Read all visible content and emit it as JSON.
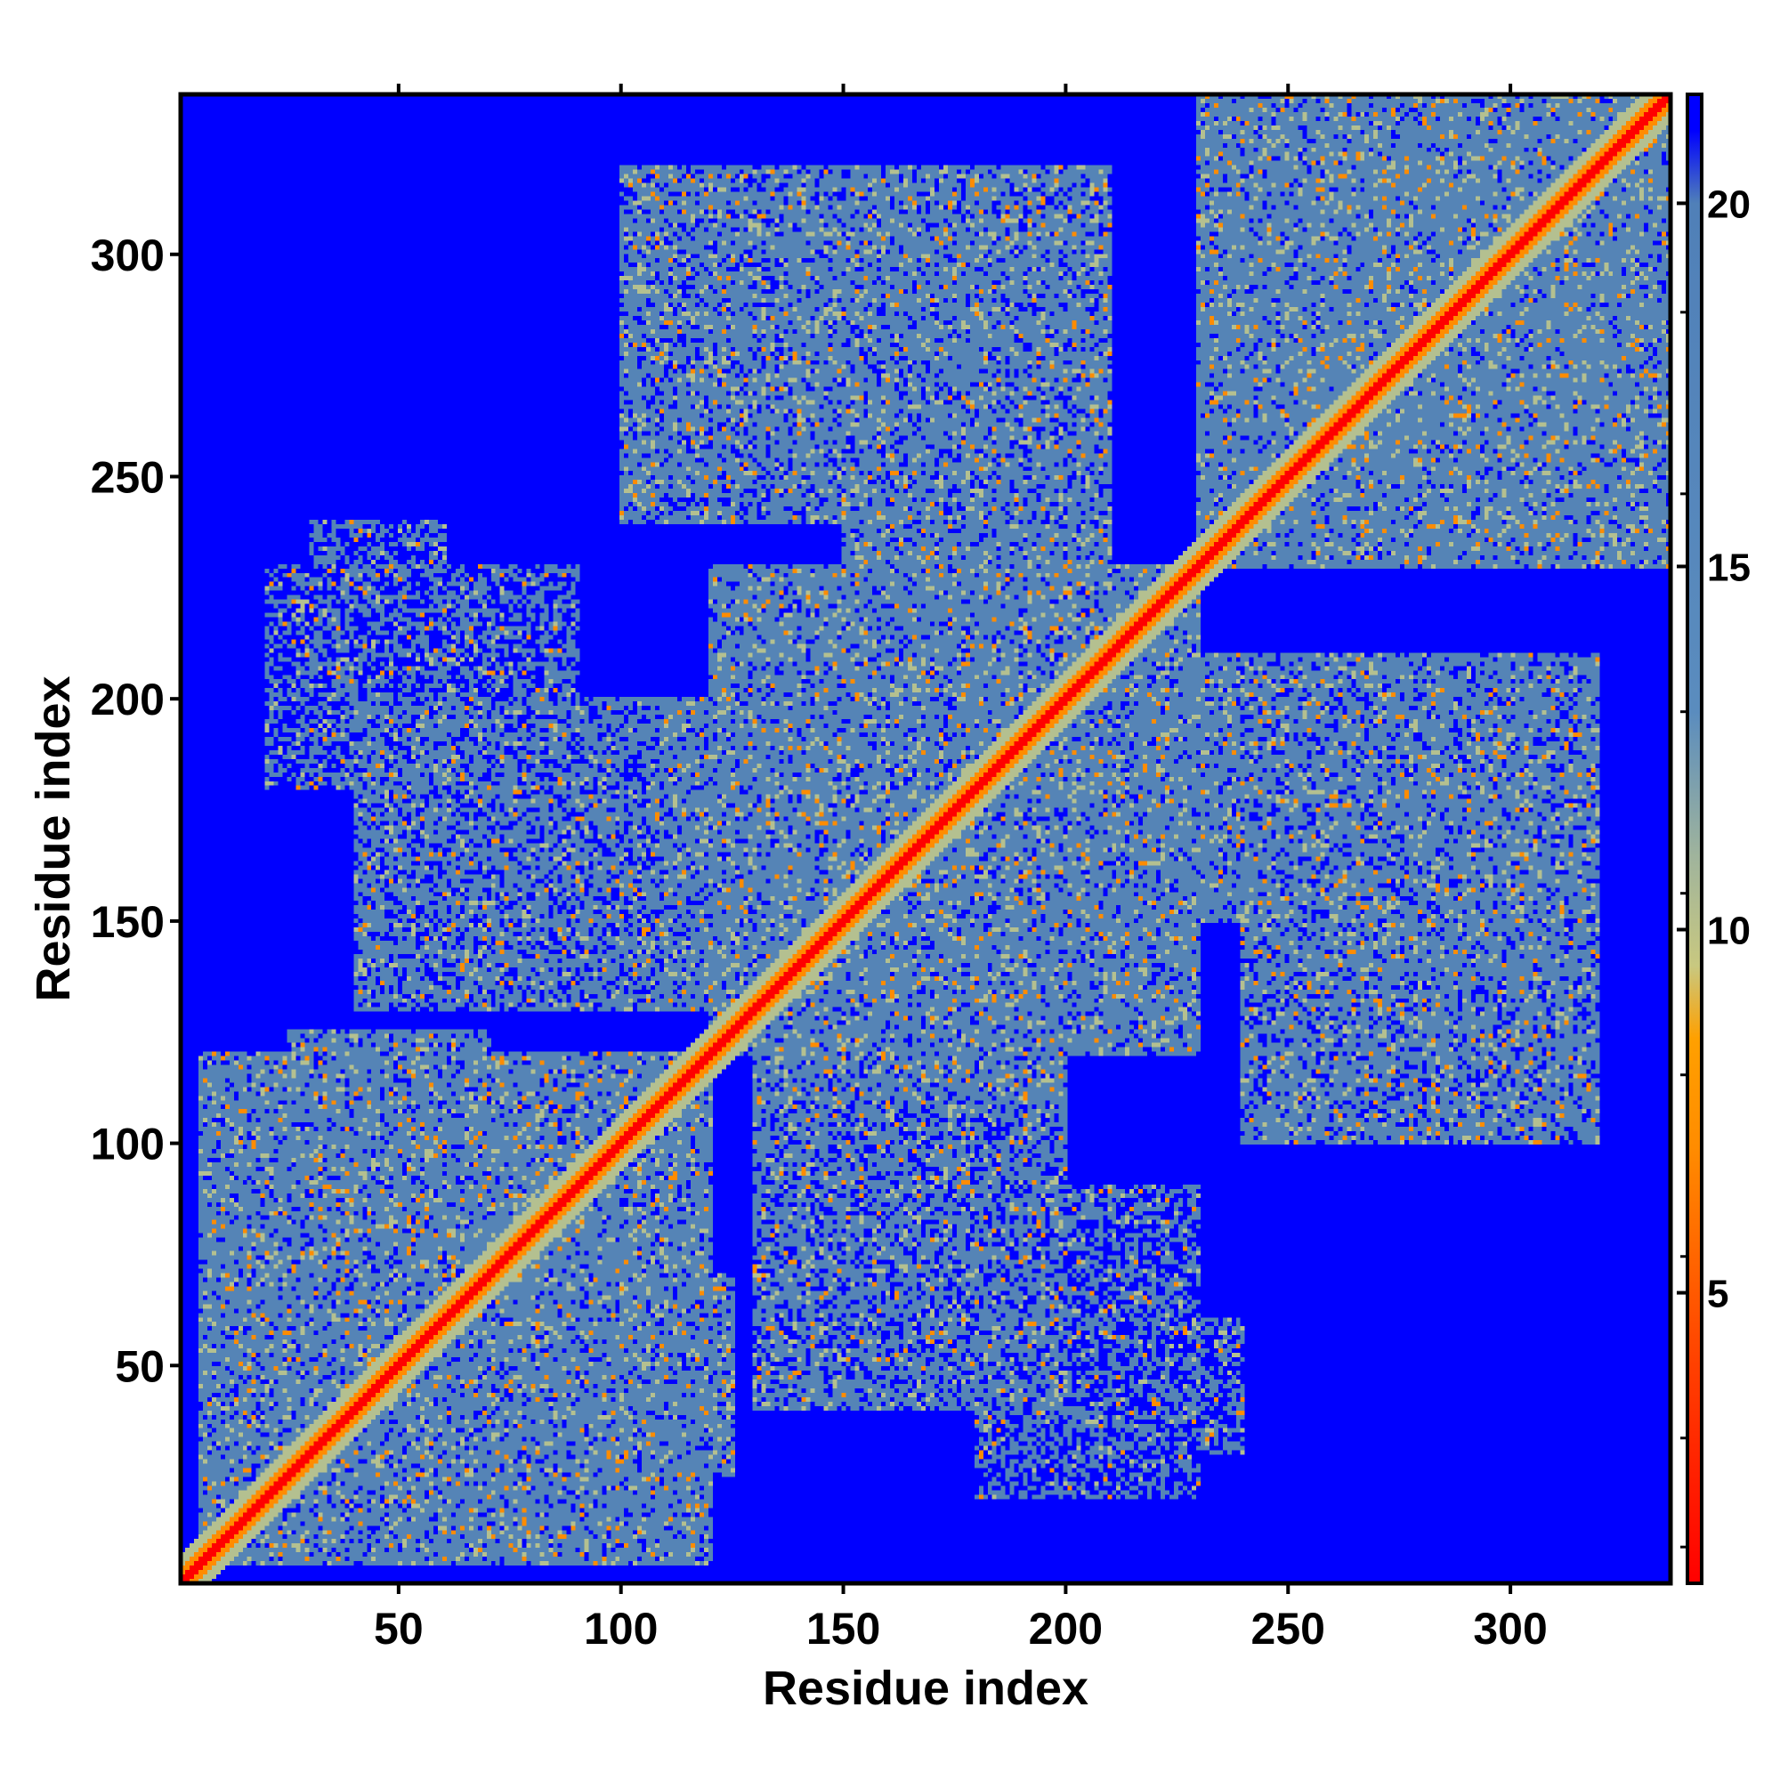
{
  "chart_data": {
    "type": "heatmap",
    "title": "",
    "xlabel": "Residue index",
    "ylabel": "Residue index",
    "xlim": [
      1,
      336
    ],
    "ylim": [
      1,
      336
    ],
    "x_ticks": [
      50,
      100,
      150,
      200,
      250,
      300
    ],
    "y_ticks": [
      50,
      100,
      150,
      200,
      250,
      300
    ],
    "colorbar": {
      "range": [
        1,
        21.5
      ],
      "ticks": [
        5,
        10,
        15,
        20
      ],
      "stops": [
        {
          "value": 1.0,
          "color": "#ff0000"
        },
        {
          "value": 4.0,
          "color": "#ff4000"
        },
        {
          "value": 7.0,
          "color": "#ff8c00"
        },
        {
          "value": 8.5,
          "color": "#ffa000"
        },
        {
          "value": 9.5,
          "color": "#c8c880"
        },
        {
          "value": 11.0,
          "color": "#a0b49c"
        },
        {
          "value": 13.0,
          "color": "#5a8cbe"
        },
        {
          "value": 20.0,
          "color": "#5080b8"
        },
        {
          "value": 21.0,
          "color": "#0000ff"
        }
      ]
    },
    "description_values": {
      "background": 21.5,
      "diagonal": 1
    },
    "colors": {
      "far": "#0000ff",
      "medium": "#5584b6",
      "near": "#b4c090",
      "contact": "#ff8c00",
      "diagonal": "#ff0000"
    }
  }
}
